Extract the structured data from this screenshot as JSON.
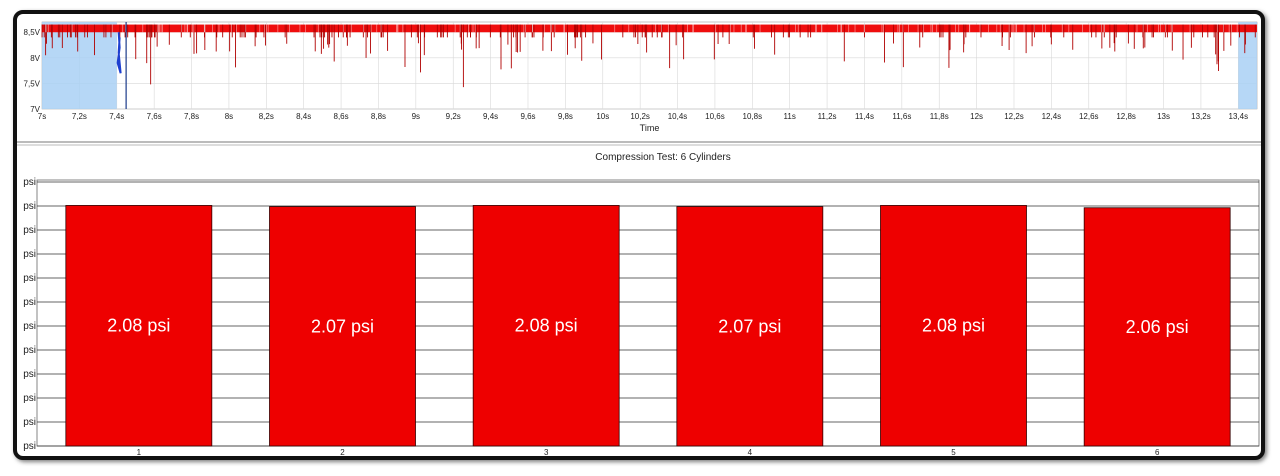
{
  "chart_data": [
    {
      "type": "line",
      "name": "overview",
      "xlabel": "Time",
      "ylabel": "",
      "x_ticks": [
        "7s",
        "7,2s",
        "7,4s",
        "7,6s",
        "7,8s",
        "8s",
        "8,2s",
        "8,4s",
        "8,6s",
        "8,8s",
        "9s",
        "9,2s",
        "9,4s",
        "9,6s",
        "9,8s",
        "10s",
        "10,2s",
        "10,4s",
        "10,6s",
        "10,8s",
        "11s",
        "11,2s",
        "11,4s",
        "11,6s",
        "11,8s",
        "12s",
        "12,2s",
        "12,4s",
        "12,6s",
        "12,8s",
        "13s",
        "13,2s",
        "13,4s"
      ],
      "y_ticks": [
        "8,5V",
        "8V",
        "7,5V",
        "7V"
      ],
      "xlim": [
        7,
        13.5
      ],
      "ylim": [
        7,
        8.7
      ],
      "selection": [
        7.4,
        13.4
      ],
      "colors": {
        "signal": "#ee0000",
        "highlight": "#a9d0f5",
        "cursor": "#1a3a8a"
      }
    },
    {
      "type": "bar",
      "name": "compression",
      "title": "Compression Test: 6 Cylinders",
      "categories": [
        "1",
        "2",
        "3",
        "4",
        "5",
        "6"
      ],
      "values": [
        2.08,
        2.07,
        2.08,
        2.07,
        2.08,
        2.06
      ],
      "value_labels": [
        "2.08 psi",
        "2.07 psi",
        "2.08 psi",
        "2.07 psi",
        "2.08 psi",
        "2.06 psi"
      ],
      "y_tick_count": 12,
      "y_tick_label": "psi",
      "ylim": [
        0,
        2.3
      ],
      "colors": {
        "bar": "#ee0000",
        "bar_border": "#330000",
        "label": "#ffffff"
      }
    }
  ]
}
